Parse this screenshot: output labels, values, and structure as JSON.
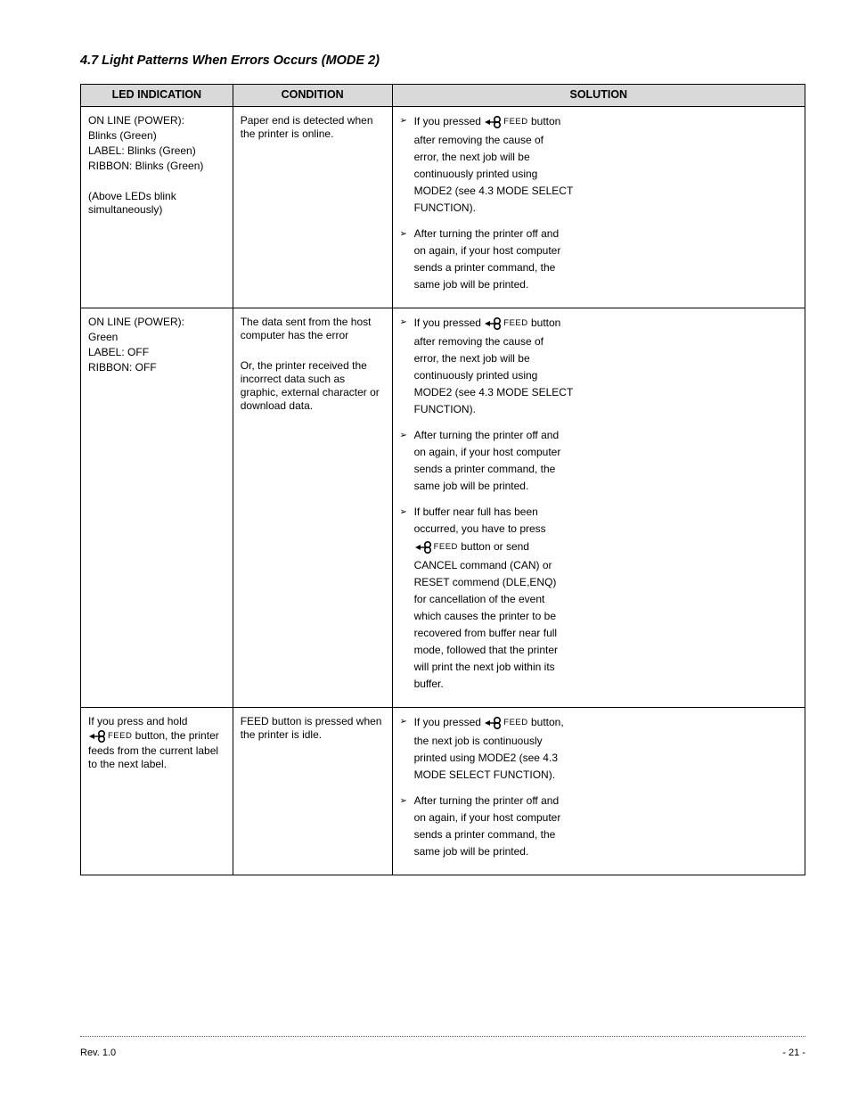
{
  "title": "4.7 Light Patterns When Errors Occurs (MODE 2)",
  "headers": [
    "LED INDICATION",
    "CONDITION",
    "SOLUTION"
  ],
  "rows": [
    {
      "led": [
        "ON LINE (POWER):",
        "Blinks (Green)",
        "LABEL: Blinks (Green)",
        "RIBBON: Blinks (Green)",
        "",
        "(Above LEDs blink simultaneously)"
      ],
      "condition": [
        "Paper end is detected when the printer is online."
      ],
      "solution": {
        "items": [
          {
            "lines": [
              [
                "If you pressed ",
                {
                  "feed": true
                },
                " button"
              ],
              [
                "after removing the cause of"
              ],
              [
                "error, the next job will be"
              ],
              [
                "continuously printed using"
              ],
              [
                "MODE2 (see 4.3 MODE SELECT"
              ],
              [
                "FUNCTION)."
              ]
            ]
          },
          {
            "lines": [
              [
                "After turning the printer off and"
              ],
              [
                "on again, if your host computer"
              ],
              [
                "sends a printer command, the"
              ],
              [
                "same job will be printed."
              ]
            ]
          }
        ]
      }
    },
    {
      "led": [
        "ON LINE (POWER):",
        "Green",
        "LABEL: OFF",
        "RIBBON: OFF"
      ],
      "condition": [
        "The data sent from the host computer has the error",
        "",
        "Or, the printer received the incorrect data such as graphic, external character or download data."
      ],
      "solution": {
        "items": [
          {
            "lines": [
              [
                "If you pressed ",
                {
                  "feed": true
                },
                " button"
              ],
              [
                "after removing the cause of"
              ],
              [
                "error, the next job will be"
              ],
              [
                "continuously printed using"
              ],
              [
                "MODE2 (see 4.3 MODE SELECT"
              ],
              [
                "FUNCTION)."
              ]
            ]
          },
          {
            "lines": [
              [
                "After turning the printer off and"
              ],
              [
                "on again, if your host computer"
              ],
              [
                "sends a printer command, the"
              ],
              [
                "same job will be printed."
              ]
            ]
          },
          {
            "lines": [
              [
                "If buffer near full has been"
              ],
              [
                "occurred, you have to press"
              ],
              [
                "",
                {
                  "feed": true
                },
                " button or send"
              ],
              [
                "CANCEL command (CAN) or"
              ],
              [
                "RESET commend (DLE,ENQ)"
              ],
              [
                "for cancellation of the event"
              ],
              [
                "which causes the printer to be"
              ],
              [
                "recovered from buffer near full"
              ],
              [
                "mode, followed that the printer"
              ],
              [
                "will print the next job within its"
              ],
              [
                "buffer."
              ]
            ]
          }
        ]
      }
    },
    {
      "led": [
        "If you press and hold ",
        {
          "feed": true
        },
        " button, the printer feeds from the current label to the next label."
      ],
      "ledIsPara": true,
      "condition": [
        "FEED button is pressed when the printer is idle."
      ],
      "solution": {
        "items": [
          {
            "lines": [
              [
                "If you pressed ",
                {
                  "feed": true
                },
                " button,"
              ],
              [
                "the next job is continuously"
              ],
              [
                "printed using MODE2 (see 4.3"
              ],
              [
                "MODE SELECT FUNCTION)."
              ]
            ]
          },
          {
            "lines": [
              [
                "After turning the printer off and"
              ],
              [
                "on again, if your host computer"
              ],
              [
                "sends a printer command, the"
              ],
              [
                "same job will be printed."
              ]
            ]
          }
        ]
      }
    }
  ],
  "footer": {
    "left": "Rev. 1.0",
    "right": "- 21 -"
  }
}
